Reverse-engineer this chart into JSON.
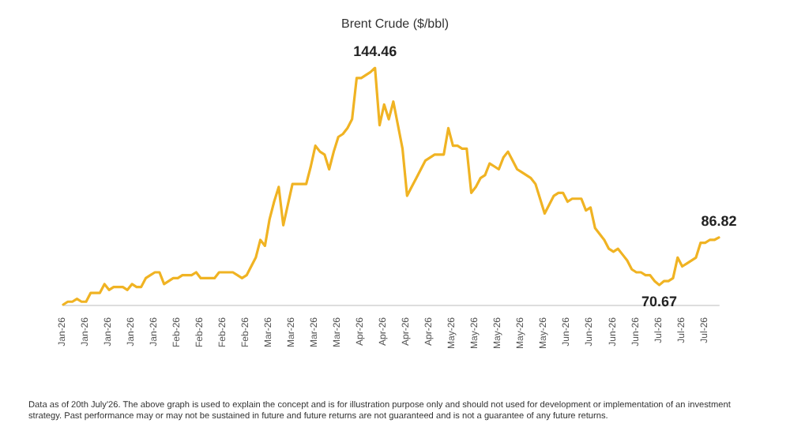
{
  "chart_data": {
    "type": "line",
    "title": "Brent Crude ($/bbl)",
    "categories": [
      "Jan-26",
      null,
      null,
      null,
      null,
      "Jan-26",
      null,
      null,
      null,
      null,
      "Jan-26",
      null,
      null,
      null,
      null,
      "Jan-26",
      null,
      null,
      null,
      null,
      "Jan-26",
      null,
      null,
      null,
      null,
      "Feb-26",
      null,
      null,
      null,
      null,
      "Feb-26",
      null,
      null,
      null,
      null,
      "Feb-26",
      null,
      null,
      null,
      null,
      "Feb-26",
      null,
      null,
      null,
      null,
      "Mar-26",
      null,
      null,
      null,
      null,
      "Mar-26",
      null,
      null,
      null,
      null,
      "Mar-26",
      null,
      null,
      null,
      null,
      "Mar-26",
      null,
      null,
      null,
      null,
      "Apr-26",
      null,
      null,
      null,
      null,
      "Apr-26",
      null,
      null,
      null,
      null,
      "Apr-26",
      null,
      null,
      null,
      null,
      "Apr-26",
      null,
      null,
      null,
      null,
      "May-26",
      null,
      null,
      null,
      null,
      "May-26",
      null,
      null,
      null,
      null,
      "May-26",
      null,
      null,
      null,
      null,
      "May-26",
      null,
      null,
      null,
      null,
      "May-26",
      null,
      null,
      null,
      null,
      "Jun-26",
      null,
      null,
      null,
      null,
      "Jun-26",
      null,
      null,
      null,
      null,
      "Jun-26",
      null,
      null,
      null,
      null,
      "Jun-26",
      null,
      null,
      null,
      null,
      "Jul-26",
      null,
      null,
      null,
      null,
      "Jul-26",
      null,
      null,
      null,
      null,
      "Jul-26",
      null,
      null,
      null
    ],
    "series": [
      {
        "color": "#f0b323",
        "values": [
          64,
          65,
          65,
          66,
          65,
          65,
          68,
          68,
          68,
          71,
          69,
          70,
          70,
          70,
          69,
          71,
          70,
          70,
          73,
          74,
          75,
          75,
          71,
          72,
          73,
          73,
          74,
          74,
          74,
          75,
          73,
          73,
          73,
          73,
          75,
          75,
          75,
          75,
          74,
          73,
          74,
          77,
          80,
          86,
          84,
          93,
          99,
          104,
          91,
          98,
          105,
          105,
          105,
          105,
          111,
          118,
          116,
          115,
          110,
          116,
          121,
          122,
          124,
          127,
          141,
          141,
          142,
          143,
          144.46,
          125,
          132,
          127,
          133,
          125,
          117,
          101,
          104,
          107,
          110,
          113,
          114,
          115,
          115,
          115,
          124,
          118,
          118,
          117,
          117,
          102,
          104,
          107,
          108,
          112,
          111,
          110,
          114,
          116,
          113,
          110,
          109,
          108,
          107,
          105,
          100,
          95,
          98,
          101,
          102,
          102,
          99,
          100,
          100,
          100,
          96,
          97,
          90,
          88,
          86,
          83,
          82,
          83,
          81,
          79,
          76,
          75,
          75,
          74,
          74,
          72,
          70.67,
          72,
          72,
          73,
          80,
          77,
          78,
          79,
          80,
          85,
          85,
          86,
          86,
          86.82
        ],
        "value_labels": [
          null,
          null,
          null,
          null,
          null,
          null,
          null,
          null,
          null,
          null,
          null,
          null,
          null,
          null,
          null,
          null,
          null,
          null,
          null,
          null,
          null,
          null,
          null,
          null,
          null,
          null,
          null,
          null,
          null,
          null,
          null,
          null,
          null,
          null,
          null,
          null,
          null,
          null,
          null,
          null,
          null,
          null,
          null,
          null,
          null,
          null,
          null,
          null,
          null,
          null,
          null,
          null,
          null,
          null,
          null,
          null,
          null,
          null,
          null,
          null,
          null,
          null,
          null,
          null,
          null,
          null,
          null,
          null,
          "144.46",
          null,
          null,
          null,
          null,
          null,
          null,
          null,
          null,
          null,
          null,
          null,
          null,
          null,
          null,
          null,
          null,
          null,
          null,
          null,
          null,
          null,
          null,
          null,
          null,
          null,
          null,
          null,
          null,
          null,
          null,
          null,
          null,
          null,
          null,
          null,
          null,
          null,
          null,
          null,
          null,
          null,
          null,
          null,
          null,
          null,
          null,
          null,
          null,
          null,
          null,
          null,
          null,
          null,
          null,
          null,
          null,
          null,
          null,
          null,
          null,
          null,
          "70.67",
          null,
          null,
          null,
          null,
          null,
          null,
          null,
          null,
          null,
          null,
          null,
          null,
          "86.82"
        ]
      }
    ],
    "tick_labels": "x",
    "grid": false,
    "marker": "none",
    "line_style": "solid",
    "annotations": [
      "Data as of 20th July'26. The above graph is used to explain the concept and is for illustration purpose only and should not used for development or implementation of an investment strategy. Past performance may or may not be sustained in future and future returns are not guaranteed and is not a guarantee of any future returns."
    ]
  }
}
